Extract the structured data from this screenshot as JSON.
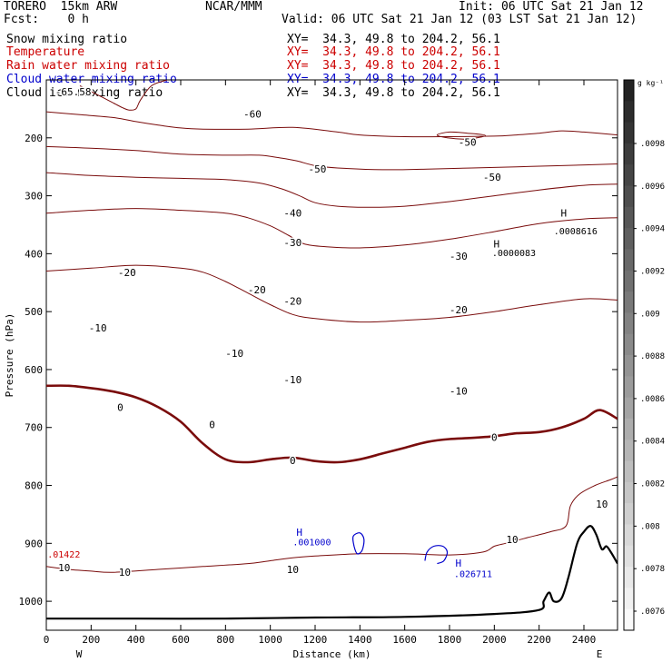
{
  "header": {
    "model": "TORERO  15km ARW",
    "org": "NCAR/MMM",
    "init": "Init: 06 UTC Sat 21 Jan 12",
    "fcst": "Fcst:    0 h",
    "valid": "Valid: 06 UTC Sat 21 Jan 12 (03 LST Sat 21 Jan 12)"
  },
  "fields": [
    {
      "name": "Snow mixing ratio",
      "xy": "XY=  34.3, 49.8 to 204.2, 56.1",
      "color": "#000000"
    },
    {
      "name": "Temperature",
      "xy": "XY=  34.3, 49.8 to 204.2, 56.1",
      "color": "#cc0000"
    },
    {
      "name": "Rain water mixing ratio",
      "xy": "XY=  34.3, 49.8 to 204.2, 56.1",
      "color": "#cc0000"
    },
    {
      "name": "Cloud water mixing ratio",
      "xy": "XY=  34.3, 49.8 to 204.2, 56.1",
      "color": "#0000cc"
    },
    {
      "name": "Cloud ice mixing ratio",
      "xy": "XY=  34.3, 49.8 to 204.2, 56.1",
      "color": "#000000"
    }
  ],
  "colors": {
    "temperature": "#7a0c0c",
    "cloud_water": "#0000cc",
    "terrain": "#000000",
    "rain": "#cc0000"
  },
  "chart_data": {
    "type": "contour",
    "xlabel": "Distance (km)",
    "ylabel": "Pressure (hPa)",
    "x_ticks": [
      0,
      200,
      400,
      600,
      800,
      1000,
      1200,
      1400,
      1600,
      1800,
      2000,
      2200,
      2400
    ],
    "x_range": [
      0,
      2550
    ],
    "y_ticks": [
      200,
      300,
      400,
      500,
      600,
      700,
      800,
      900,
      1000
    ],
    "y_range": [
      100,
      1050
    ],
    "x_end_labels": {
      "left": "W",
      "right": "E"
    },
    "colorbar": {
      "unit": "g kg⁻¹",
      "ticks": [
        ".0098",
        ".0096",
        ".0094",
        ".0092",
        ".009",
        ".0088",
        ".0086",
        ".0084",
        ".0082",
        ".008",
        ".0078",
        ".0076"
      ]
    },
    "temperature_contours": [
      {
        "level": -60,
        "points": [
          [
            150,
            110
          ],
          [
            200,
            120
          ],
          [
            250,
            130
          ],
          [
            300,
            140
          ],
          [
            340,
            148
          ],
          [
            370,
            152
          ],
          [
            400,
            150
          ],
          [
            420,
            135
          ],
          [
            470,
            110
          ],
          [
            540,
            100
          ]
        ]
      },
      {
        "level": -50,
        "points": [
          [
            0,
            155
          ],
          [
            150,
            160
          ],
          [
            300,
            165
          ],
          [
            400,
            172
          ],
          [
            500,
            178
          ],
          [
            600,
            183
          ],
          [
            700,
            185
          ],
          [
            900,
            185
          ],
          [
            1100,
            182
          ],
          [
            1300,
            190
          ],
          [
            1400,
            195
          ],
          [
            1600,
            198
          ],
          [
            1800,
            198
          ],
          [
            2000,
            197
          ],
          [
            2100,
            195
          ],
          [
            2200,
            192
          ],
          [
            2300,
            188
          ],
          [
            2400,
            190
          ],
          [
            2550,
            195
          ]
        ]
      },
      {
        "level": -50,
        "closed": true,
        "points": [
          [
            1745,
            195
          ],
          [
            1800,
            190
          ],
          [
            1880,
            192
          ],
          [
            1960,
            196
          ],
          [
            1880,
            202
          ],
          [
            1790,
            200
          ]
        ]
      },
      {
        "level": -40,
        "points": [
          [
            0,
            215
          ],
          [
            200,
            218
          ],
          [
            400,
            222
          ],
          [
            600,
            228
          ],
          [
            800,
            230
          ],
          [
            950,
            230
          ],
          [
            1050,
            235
          ],
          [
            1120,
            240
          ],
          [
            1200,
            248
          ],
          [
            1300,
            252
          ],
          [
            1500,
            255
          ],
          [
            1700,
            254
          ],
          [
            1900,
            252
          ],
          [
            2100,
            250
          ],
          [
            2300,
            248
          ],
          [
            2550,
            245
          ]
        ]
      },
      {
        "level": -30,
        "points": [
          [
            0,
            260
          ],
          [
            200,
            265
          ],
          [
            400,
            268
          ],
          [
            600,
            270
          ],
          [
            800,
            272
          ],
          [
            950,
            278
          ],
          [
            1050,
            288
          ],
          [
            1130,
            300
          ],
          [
            1200,
            312
          ],
          [
            1300,
            318
          ],
          [
            1450,
            320
          ],
          [
            1600,
            318
          ],
          [
            1800,
            310
          ],
          [
            2000,
            300
          ],
          [
            2200,
            290
          ],
          [
            2400,
            282
          ],
          [
            2550,
            280
          ]
        ]
      },
      {
        "level": -20,
        "points": [
          [
            0,
            330
          ],
          [
            200,
            325
          ],
          [
            400,
            322
          ],
          [
            600,
            325
          ],
          [
            800,
            330
          ],
          [
            900,
            338
          ],
          [
            1000,
            352
          ],
          [
            1080,
            368
          ],
          [
            1150,
            383
          ],
          [
            1250,
            388
          ],
          [
            1400,
            390
          ],
          [
            1600,
            385
          ],
          [
            1800,
            375
          ],
          [
            2000,
            362
          ],
          [
            2200,
            348
          ],
          [
            2400,
            340
          ],
          [
            2550,
            338
          ]
        ]
      },
      {
        "level": -10,
        "points": [
          [
            0,
            430
          ],
          [
            200,
            425
          ],
          [
            400,
            420
          ],
          [
            600,
            425
          ],
          [
            700,
            432
          ],
          [
            800,
            448
          ],
          [
            900,
            468
          ],
          [
            1000,
            488
          ],
          [
            1100,
            505
          ],
          [
            1200,
            512
          ],
          [
            1400,
            518
          ],
          [
            1600,
            515
          ],
          [
            1800,
            510
          ],
          [
            2000,
            500
          ],
          [
            2200,
            488
          ],
          [
            2400,
            478
          ],
          [
            2550,
            480
          ]
        ]
      },
      {
        "level": 0,
        "bold": true,
        "points": [
          [
            0,
            628
          ],
          [
            100,
            628
          ],
          [
            200,
            632
          ],
          [
            300,
            638
          ],
          [
            400,
            648
          ],
          [
            500,
            665
          ],
          [
            600,
            690
          ],
          [
            700,
            728
          ],
          [
            800,
            755
          ],
          [
            900,
            760
          ],
          [
            1000,
            755
          ],
          [
            1100,
            752
          ],
          [
            1200,
            758
          ],
          [
            1300,
            760
          ],
          [
            1400,
            755
          ],
          [
            1500,
            745
          ],
          [
            1600,
            735
          ],
          [
            1700,
            725
          ],
          [
            1800,
            720
          ],
          [
            1900,
            718
          ],
          [
            2000,
            715
          ],
          [
            2100,
            710
          ],
          [
            2200,
            708
          ],
          [
            2300,
            700
          ],
          [
            2400,
            685
          ],
          [
            2470,
            670
          ],
          [
            2550,
            685
          ]
        ]
      },
      {
        "level": 10,
        "points": [
          [
            0,
            940
          ],
          [
            100,
            945
          ],
          [
            200,
            948
          ],
          [
            300,
            950
          ],
          [
            500,
            945
          ],
          [
            700,
            940
          ],
          [
            900,
            935
          ],
          [
            1000,
            930
          ],
          [
            1100,
            925
          ],
          [
            1200,
            922
          ],
          [
            1400,
            918
          ],
          [
            1600,
            918
          ],
          [
            1800,
            920
          ],
          [
            1950,
            915
          ],
          [
            2000,
            905
          ],
          [
            2050,
            900
          ],
          [
            2100,
            895
          ],
          [
            2150,
            890
          ],
          [
            2250,
            880
          ],
          [
            2320,
            870
          ],
          [
            2340,
            835
          ],
          [
            2380,
            815
          ],
          [
            2450,
            800
          ],
          [
            2520,
            790
          ],
          [
            2550,
            785
          ]
        ]
      }
    ],
    "temperature_labels": [
      {
        "text": "-65.58",
        "x": 120,
        "y": 120
      },
      {
        "text": "-60",
        "x": 920,
        "y": 159
      },
      {
        "text": "-50",
        "x": 1880,
        "y": 207
      },
      {
        "text": "-50",
        "x": 1210,
        "y": 254
      },
      {
        "text": "-50",
        "x": 1990,
        "y": 268
      },
      {
        "text": "-40",
        "x": 1100,
        "y": 330
      },
      {
        "text": "-30",
        "x": 1100,
        "y": 381
      },
      {
        "text": "-30",
        "x": 1840,
        "y": 404
      },
      {
        "text": "-20",
        "x": 360,
        "y": 432
      },
      {
        "text": "-20",
        "x": 940,
        "y": 462
      },
      {
        "text": "-20",
        "x": 1100,
        "y": 482
      },
      {
        "text": "-20",
        "x": 1840,
        "y": 497
      },
      {
        "text": "-10",
        "x": 230,
        "y": 528
      },
      {
        "text": "-10",
        "x": 840,
        "y": 572
      },
      {
        "text": "-10",
        "x": 1100,
        "y": 617
      },
      {
        "text": "-10",
        "x": 1840,
        "y": 637
      },
      {
        "text": "0",
        "x": 330,
        "y": 665
      },
      {
        "text": "0",
        "x": 740,
        "y": 695
      },
      {
        "text": "0",
        "x": 1100,
        "y": 757
      },
      {
        "text": "0",
        "x": 2000,
        "y": 717
      },
      {
        "text": "10",
        "x": 80,
        "y": 942
      },
      {
        "text": "10",
        "x": 350,
        "y": 950
      },
      {
        "text": "10",
        "x": 1100,
        "y": 945
      },
      {
        "text": "10",
        "x": 2080,
        "y": 893
      },
      {
        "text": "10",
        "x": 2480,
        "y": 832
      }
    ],
    "cloud_water_contours": [
      {
        "closed": true,
        "points": [
          [
            1370,
            888
          ],
          [
            1400,
            882
          ],
          [
            1418,
            893
          ],
          [
            1410,
            912
          ],
          [
            1388,
            918
          ],
          [
            1374,
            905
          ]
        ]
      },
      {
        "closed": false,
        "points": [
          [
            1690,
            930
          ],
          [
            1700,
            915
          ],
          [
            1730,
            905
          ],
          [
            1770,
            905
          ],
          [
            1790,
            915
          ],
          [
            1775,
            930
          ],
          [
            1745,
            935
          ]
        ]
      }
    ],
    "extrema": [
      {
        "mark": "H",
        "value": ".0008616",
        "x": 2310,
        "y": 330,
        "value_x": 2265,
        "value_y": 360,
        "color": "#000000"
      },
      {
        "mark": "H",
        "value": ".0000083",
        "x": 2010,
        "y": 383,
        "value_x": 1990,
        "value_y": 398,
        "color": "#000000"
      },
      {
        "mark": "H",
        "value": ".001000",
        "x": 1130,
        "y": 881,
        "value_x": 1100,
        "value_y": 897,
        "color": "#0000cc"
      },
      {
        "mark": "H",
        "value": ".026711",
        "x": 1840,
        "y": 934,
        "value_x": 1820,
        "value_y": 952,
        "color": "#0000cc"
      },
      {
        "mark": "",
        "value": ".01422",
        "x": 0,
        "y": 918,
        "value_x": 5,
        "value_y": 918,
        "color": "#cc0000"
      }
    ],
    "terrain": [
      [
        0,
        1030
      ],
      [
        400,
        1030
      ],
      [
        800,
        1030
      ],
      [
        1200,
        1028
      ],
      [
        1600,
        1027
      ],
      [
        2000,
        1022
      ],
      [
        2200,
        1015
      ],
      [
        2220,
        1000
      ],
      [
        2245,
        985
      ],
      [
        2265,
        1000
      ],
      [
        2300,
        995
      ],
      [
        2330,
        960
      ],
      [
        2370,
        900
      ],
      [
        2400,
        880
      ],
      [
        2430,
        870
      ],
      [
        2455,
        885
      ],
      [
        2480,
        910
      ],
      [
        2500,
        905
      ],
      [
        2520,
        915
      ],
      [
        2550,
        935
      ]
    ]
  }
}
